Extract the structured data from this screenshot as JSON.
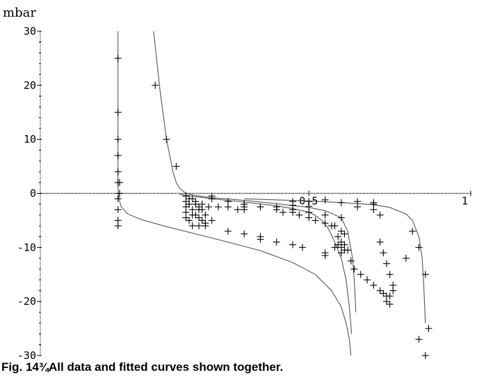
{
  "caption": "Fig. 14¾All data and fitted curves shown together.",
  "chart_data": {
    "type": "scatter",
    "title": "",
    "ylabel": "mbar",
    "xlabel": "",
    "xlim": [
      -0.33,
      1.0
    ],
    "ylim": [
      -30,
      30
    ],
    "x_ticks": [
      0.5,
      1
    ],
    "x_tick_labels": [
      "0.5",
      "1"
    ],
    "y_ticks": [
      30,
      20,
      10,
      0,
      -10,
      -20,
      -30
    ],
    "y_tick_labels": [
      "30",
      "20",
      "10",
      "0",
      "-10",
      "-20",
      "-30"
    ],
    "grid": false,
    "legend": "none",
    "colors": {
      "points": "#000000",
      "curves": "#555555",
      "axes": "#000000"
    },
    "curves": [
      {
        "x": [
          -0.09,
          -0.09,
          -0.09,
          -0.089,
          -0.087,
          -0.08,
          -0.06,
          -0.02,
          0.05,
          0.15,
          0.25,
          0.35,
          0.45,
          0.52,
          0.57,
          0.6,
          0.615,
          0.625,
          0.63
        ],
        "y": [
          30,
          10,
          2,
          0,
          -1,
          -2.5,
          -3.8,
          -4.8,
          -6,
          -7.5,
          -9,
          -10.6,
          -12.8,
          -15,
          -18,
          -21,
          -24,
          -27,
          -30
        ]
      },
      {
        "x": [
          0.02,
          0.04,
          0.06,
          0.08,
          0.09,
          0.1,
          0.12,
          0.15,
          0.2,
          0.3,
          0.4,
          0.5,
          0.55,
          0.6,
          0.62,
          0.635,
          0.64,
          0.645
        ],
        "y": [
          30,
          19,
          10,
          4,
          2,
          1,
          0,
          -0.4,
          -0.8,
          -1.3,
          -1.9,
          -2.6,
          -3.2,
          -4.5,
          -7,
          -12,
          -16,
          -22
        ]
      },
      {
        "x": [
          0.1,
          0.15,
          0.2,
          0.3,
          0.4,
          0.45,
          0.5,
          0.52,
          0.54,
          0.56,
          0.58,
          0.6,
          0.615,
          0.625,
          0.632
        ],
        "y": [
          -0.2,
          -0.6,
          -1,
          -1.6,
          -2.3,
          -2.8,
          -3.5,
          -4.1,
          -5,
          -6.5,
          -9,
          -12,
          -16,
          -21,
          -26
        ]
      },
      {
        "x": [
          0.3,
          0.5,
          0.6,
          0.7,
          0.75,
          0.8,
          0.82,
          0.84,
          0.85,
          0.855,
          0.86
        ],
        "y": [
          -1,
          -1.4,
          -1.7,
          -2.1,
          -2.6,
          -3.8,
          -5,
          -8,
          -12,
          -17,
          -24
        ]
      }
    ],
    "points": {
      "x": [
        -0.09,
        -0.09,
        -0.09,
        -0.09,
        -0.09,
        -0.09,
        -0.09,
        -0.09,
        -0.09,
        -0.09,
        0.025,
        0.06,
        0.09,
        -0.085,
        -0.085,
        0.12,
        0.13,
        0.12,
        0.13,
        0.12,
        0.14,
        0.15,
        0.14,
        0.16,
        0.17,
        0.15,
        0.16,
        0.17,
        0.18,
        0.18,
        0.12,
        0.13,
        0.14,
        0.16,
        0.18,
        0.2,
        0.12,
        0.14,
        0.16,
        0.13,
        0.15,
        0.17,
        0.19,
        0.22,
        0.25,
        0.28,
        0.3,
        0.35,
        0.3,
        0.4,
        0.42,
        0.45,
        0.47,
        0.5,
        0.52,
        0.55,
        0.57,
        0.58,
        0.6,
        0.61,
        0.59,
        0.6,
        0.61,
        0.58,
        0.6,
        0.62,
        0.6,
        0.61,
        0.59,
        0.25,
        0.3,
        0.35,
        0.45,
        0.55,
        0.63,
        0.35,
        0.4,
        0.48,
        0.55,
        0.64,
        0.66,
        0.68,
        0.7,
        0.72,
        0.73,
        0.74,
        0.74,
        0.75,
        0.75,
        0.76,
        0.76,
        0.75,
        0.74,
        0.73,
        0.72,
        0.45,
        0.5,
        0.6,
        0.7,
        0.55,
        0.65,
        0.7,
        0.4,
        0.45,
        0.5,
        0.55,
        0.6,
        0.3,
        0.35,
        0.65,
        0.7,
        0.72,
        0.82,
        0.84,
        0.8,
        0.86,
        0.87,
        0.86,
        0.84,
        0.2,
        0.25,
        0.3,
        0.45,
        0.5,
        0.2
      ],
      "y": [
        25,
        15,
        10,
        7,
        4,
        2,
        -1,
        -3,
        -5,
        -6,
        20,
        10,
        5,
        2,
        0,
        -0.5,
        -1,
        -1.5,
        -2,
        -2.5,
        -1,
        -1.5,
        -3,
        -2.5,
        -3,
        -4,
        -4.5,
        -5,
        -4,
        -6,
        -3.5,
        -5,
        -6,
        -6,
        -5.5,
        -5,
        -4.5,
        -4,
        -3,
        -2,
        -2,
        -2,
        -2.5,
        -2.5,
        -2.5,
        -3,
        -2.5,
        -2.5,
        -3,
        -3,
        -3.5,
        -3.5,
        -4,
        -4.5,
        -5,
        -5.5,
        -6,
        -6,
        -7,
        -7.5,
        -8,
        -9,
        -9.5,
        -10,
        -10,
        -10.5,
        -11,
        -10.5,
        -9.5,
        -7,
        -7.5,
        -8.5,
        -9.5,
        -11,
        -12.5,
        -8,
        -9,
        -10,
        -11.5,
        -14,
        -15,
        -16,
        -17,
        -18,
        -18.5,
        -19,
        -20,
        -20.5,
        -19,
        -18,
        -17,
        -15,
        -13,
        -11,
        -9,
        -1.5,
        -1.5,
        -1.7,
        -2,
        -1.2,
        -1.5,
        -1.7,
        -2.5,
        -3,
        -3.5,
        -4,
        -4.5,
        -2,
        -2.5,
        -2.5,
        -3,
        -4,
        -7,
        -10,
        -12,
        -15,
        -25,
        -30,
        -27,
        -1,
        -1.5,
        -2,
        -2.2,
        -2.4,
        -0.5
      ]
    }
  }
}
